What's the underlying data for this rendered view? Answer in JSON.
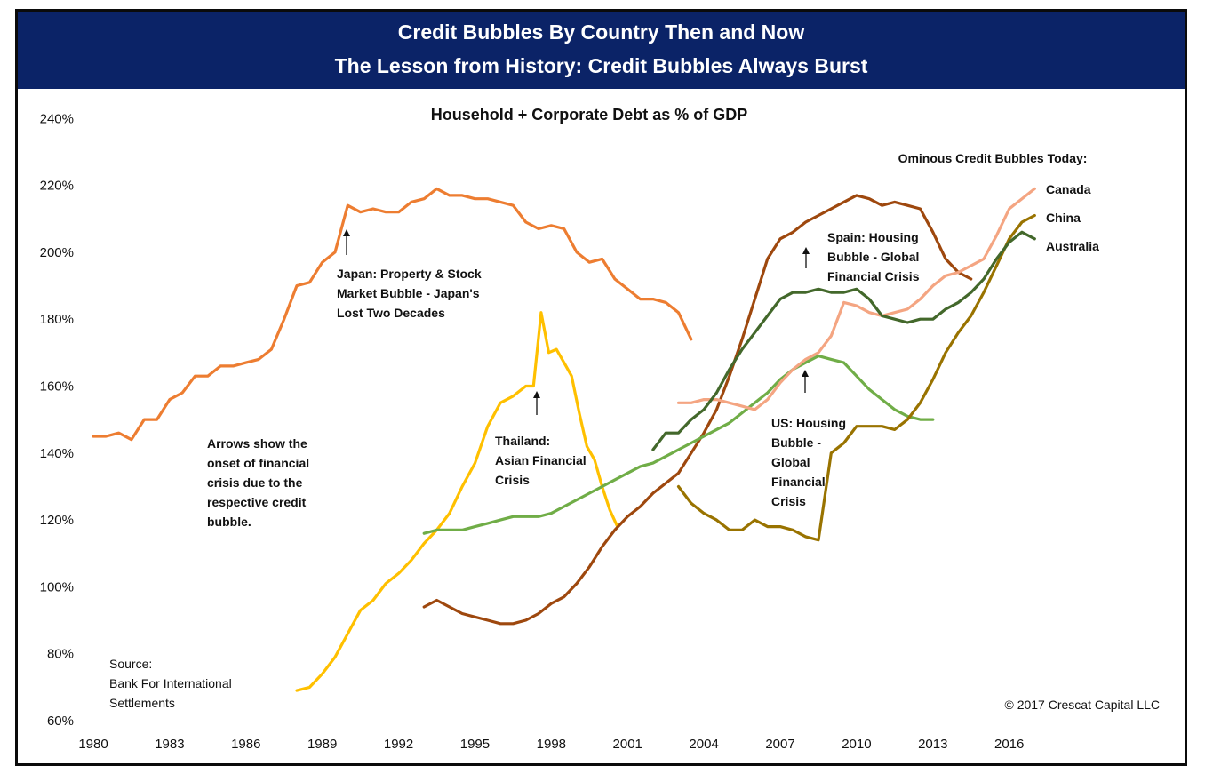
{
  "banner": {
    "line1": "Credit Bubbles By Country Then and Now",
    "line2": "The Lesson from History: Credit Bubbles Always Burst"
  },
  "footer": {
    "source": [
      "Source:",
      "Bank For International",
      "Settlements"
    ],
    "copyright": "© 2017 Crescat Capital LLC"
  },
  "colors": {
    "banner": "#0b2367",
    "japan": "#ed7d31",
    "thailand": "#ffc000",
    "spain": "#9e480e",
    "us": "#70ad47",
    "canada": "#f4a582",
    "china": "#997300",
    "australia": "#43682b"
  },
  "chart_data": {
    "type": "line",
    "title": "Household + Corporate Debt as % of GDP",
    "ylabel": "",
    "xlabel": "",
    "xlim": [
      1980,
      2018
    ],
    "ylim": [
      60,
      240
    ],
    "xticks": [
      "1980",
      "1983",
      "1986",
      "1989",
      "1992",
      "1995",
      "1998",
      "2001",
      "2004",
      "2007",
      "2010",
      "2013",
      "2016"
    ],
    "yticks": [
      "60%",
      "80%",
      "100%",
      "120%",
      "140%",
      "160%",
      "180%",
      "200%",
      "220%",
      "240%"
    ],
    "grid": false,
    "legend_heading": "Ominous Credit Bubbles Today:",
    "series": [
      {
        "name": "Japan",
        "color": "#ed7d31",
        "x": [
          1980,
          1980.5,
          1981,
          1981.5,
          1982,
          1982.5,
          1983,
          1983.5,
          1984,
          1984.5,
          1985,
          1985.5,
          1986,
          1986.5,
          1987,
          1987.5,
          1988,
          1988.5,
          1989,
          1989.5,
          1990,
          1990.5,
          1991,
          1991.5,
          1992,
          1992.5,
          1993,
          1993.5,
          1994,
          1994.5,
          1995,
          1995.5,
          1996,
          1996.5,
          1997,
          1997.5,
          1998,
          1998.5,
          1999,
          1999.5,
          2000,
          2000.5,
          2001,
          2001.5,
          2002,
          2002.5,
          2003,
          2003.5
        ],
        "y": [
          145,
          145,
          146,
          144,
          150,
          150,
          156,
          158,
          163,
          163,
          166,
          166,
          167,
          168,
          171,
          180,
          190,
          191,
          197,
          200,
          214,
          212,
          213,
          212,
          212,
          215,
          216,
          219,
          217,
          217,
          216,
          216,
          215,
          214,
          209,
          207,
          208,
          207,
          200,
          197,
          198,
          192,
          189,
          186,
          186,
          185,
          182,
          174
        ]
      },
      {
        "name": "Thailand",
        "color": "#ffc000",
        "x": [
          1988,
          1988.5,
          1989,
          1989.5,
          1990,
          1990.5,
          1991,
          1991.5,
          1992,
          1992.5,
          1993,
          1993.5,
          1994,
          1994.5,
          1995,
          1995.5,
          1996,
          1996.5,
          1997,
          1997.3,
          1997.6,
          1997.9,
          1998.2,
          1998.5,
          1998.8,
          1999.1,
          1999.4,
          1999.7,
          2000,
          2000.3,
          2000.6
        ],
        "y": [
          69,
          70,
          74,
          79,
          86,
          93,
          96,
          101,
          104,
          108,
          113,
          117,
          122,
          130,
          137,
          148,
          155,
          157,
          160,
          160,
          182,
          170,
          171,
          167,
          163,
          152,
          142,
          138,
          130,
          123,
          118
        ]
      },
      {
        "name": "Spain",
        "color": "#9e480e",
        "x": [
          1993,
          1993.5,
          1994,
          1994.5,
          1995,
          1995.5,
          1996,
          1996.5,
          1997,
          1997.5,
          1998,
          1998.5,
          1999,
          1999.5,
          2000,
          2000.5,
          2001,
          2001.5,
          2002,
          2002.5,
          2003,
          2003.5,
          2004,
          2004.5,
          2005,
          2005.5,
          2006,
          2006.5,
          2007,
          2007.5,
          2008,
          2008.5,
          2009,
          2009.5,
          2010,
          2010.5,
          2011,
          2011.5,
          2012,
          2012.5,
          2013,
          2013.5,
          2014,
          2014.5
        ],
        "y": [
          94,
          96,
          94,
          92,
          91,
          90,
          89,
          89,
          90,
          92,
          95,
          97,
          101,
          106,
          112,
          117,
          121,
          124,
          128,
          131,
          134,
          140,
          146,
          153,
          163,
          174,
          186,
          198,
          204,
          206,
          209,
          211,
          213,
          215,
          217,
          216,
          214,
          215,
          214,
          213,
          206,
          198,
          194,
          192
        ]
      },
      {
        "name": "US",
        "color": "#70ad47",
        "x": [
          1993,
          1993.5,
          1994,
          1994.5,
          1995,
          1995.5,
          1996,
          1996.5,
          1997,
          1997.5,
          1998,
          1998.5,
          1999,
          1999.5,
          2000,
          2000.5,
          2001,
          2001.5,
          2002,
          2002.5,
          2003,
          2003.5,
          2004,
          2004.5,
          2005,
          2005.5,
          2006,
          2006.5,
          2007,
          2007.5,
          2008,
          2008.5,
          2009,
          2009.5,
          2010,
          2010.5,
          2011,
          2011.5,
          2012,
          2012.5,
          2013
        ],
        "y": [
          116,
          117,
          117,
          117,
          118,
          119,
          120,
          121,
          121,
          121,
          122,
          124,
          126,
          128,
          130,
          132,
          134,
          136,
          137,
          139,
          141,
          143,
          145,
          147,
          149,
          152,
          155,
          158,
          162,
          165,
          167,
          169,
          168,
          167,
          163,
          159,
          156,
          153,
          151,
          150,
          150
        ]
      },
      {
        "name": "Canada",
        "color": "#f4a582",
        "x": [
          2003,
          2003.5,
          2004,
          2004.5,
          2005,
          2005.5,
          2006,
          2006.5,
          2007,
          2007.5,
          2008,
          2008.5,
          2009,
          2009.5,
          2010,
          2010.5,
          2011,
          2011.5,
          2012,
          2012.5,
          2013,
          2013.5,
          2014,
          2014.5,
          2015,
          2015.5,
          2016,
          2016.5,
          2017
        ],
        "y": [
          155,
          155,
          156,
          156,
          155,
          154,
          153,
          156,
          161,
          165,
          168,
          170,
          175,
          185,
          184,
          182,
          181,
          182,
          183,
          186,
          190,
          193,
          194,
          196,
          198,
          205,
          213,
          216,
          219
        ]
      },
      {
        "name": "China",
        "color": "#997300",
        "x": [
          2003,
          2003.5,
          2004,
          2004.5,
          2005,
          2005.5,
          2006,
          2006.5,
          2007,
          2007.5,
          2008,
          2008.5,
          2009,
          2009.5,
          2010,
          2010.5,
          2011,
          2011.5,
          2012,
          2012.5,
          2013,
          2013.5,
          2014,
          2014.5,
          2015,
          2015.5,
          2016,
          2016.5,
          2017
        ],
        "y": [
          130,
          125,
          122,
          120,
          117,
          117,
          120,
          118,
          118,
          117,
          115,
          114,
          140,
          143,
          148,
          148,
          148,
          147,
          150,
          155,
          162,
          170,
          176,
          181,
          188,
          196,
          204,
          209,
          211
        ]
      },
      {
        "name": "Australia",
        "color": "#43682b",
        "x": [
          2002,
          2002.5,
          2003,
          2003.5,
          2004,
          2004.5,
          2005,
          2005.5,
          2006,
          2006.5,
          2007,
          2007.5,
          2008,
          2008.5,
          2009,
          2009.5,
          2010,
          2010.5,
          2011,
          2011.5,
          2012,
          2012.5,
          2013,
          2013.5,
          2014,
          2014.5,
          2015,
          2015.5,
          2016,
          2016.5,
          2017
        ],
        "y": [
          141,
          146,
          146,
          150,
          153,
          158,
          165,
          171,
          176,
          181,
          186,
          188,
          188,
          189,
          188,
          188,
          189,
          186,
          181,
          180,
          179,
          180,
          180,
          183,
          185,
          188,
          192,
          198,
          203,
          206,
          204
        ]
      }
    ],
    "series_labels": [
      "Canada",
      "China",
      "Australia"
    ],
    "annotations": [
      {
        "text": [
          "Japan: Property & Stock",
          "Market Bubble - Japan's",
          "Lost Two Decades"
        ]
      },
      {
        "text": [
          "Thailand:",
          "Asian Financial",
          "Crisis"
        ]
      },
      {
        "text": [
          "Spain: Housing",
          "Bubble - Global",
          "Financial Crisis"
        ]
      },
      {
        "text": [
          "US: Housing",
          "Bubble -",
          "Global",
          "Financial",
          "Crisis"
        ]
      },
      {
        "text": [
          "Arrows show the",
          "onset of financial",
          "crisis due to the",
          "respective credit",
          "bubble."
        ]
      }
    ]
  }
}
